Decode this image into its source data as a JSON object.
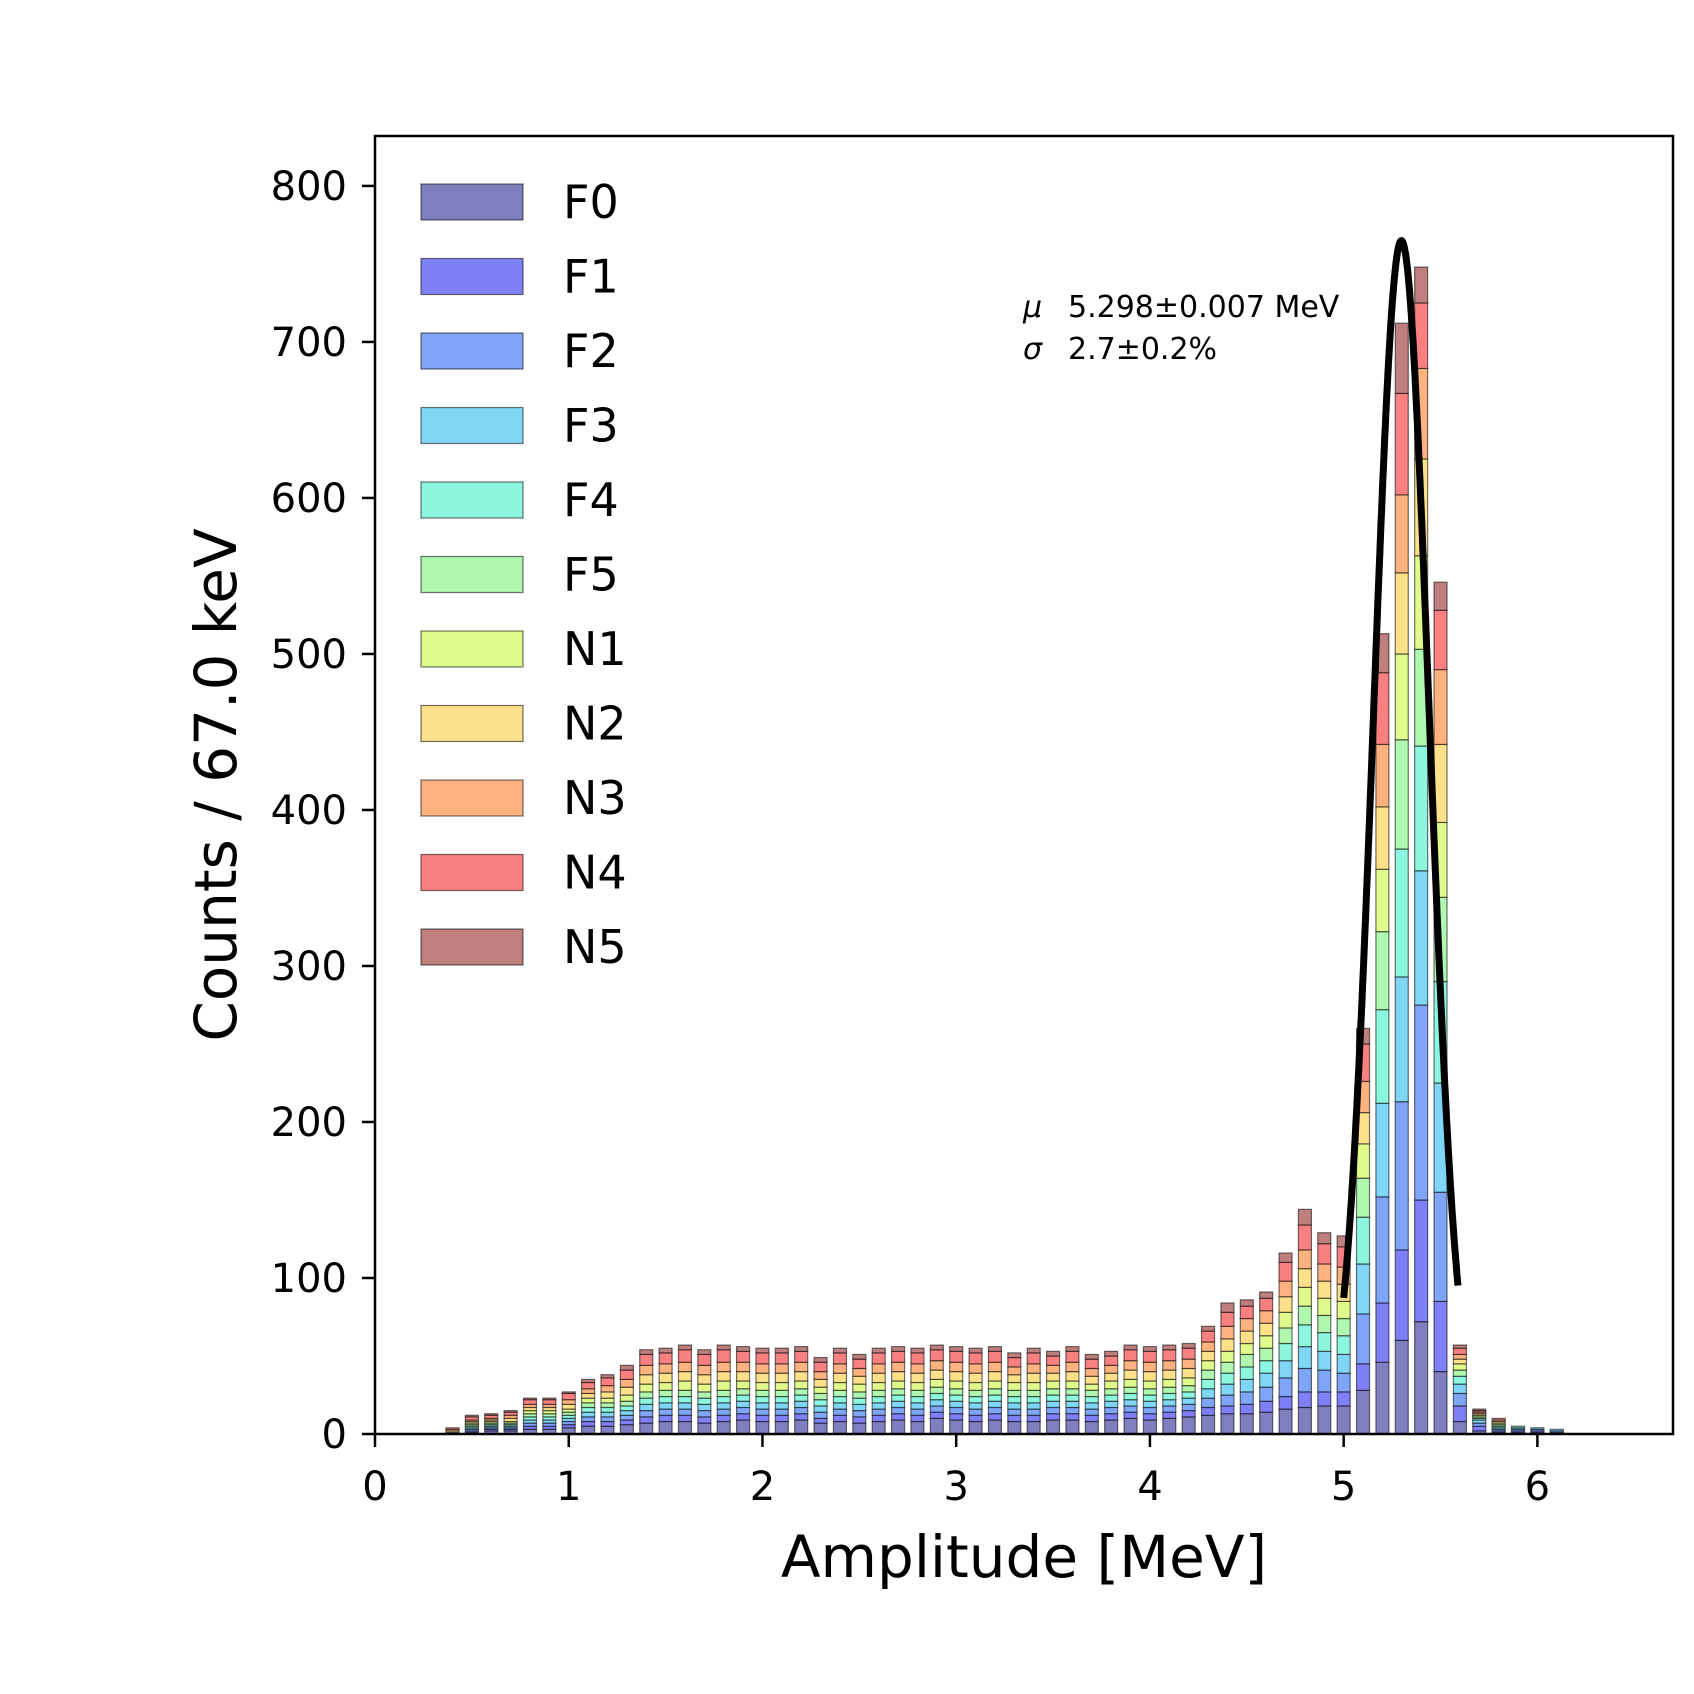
{
  "chart_data": {
    "type": "bar",
    "subtype": "stacked-step-histogram",
    "xlabel": "Amplitude [MeV]",
    "ylabel": "Counts / 67.0 keV",
    "xlim": [
      0,
      6.7
    ],
    "ylim": [
      0,
      832
    ],
    "xticks": [
      0,
      1,
      2,
      3,
      4,
      5,
      6
    ],
    "xtick_labels": [
      "0",
      "1",
      "2",
      "3",
      "4",
      "5",
      "6"
    ],
    "yticks": [
      0,
      100,
      200,
      300,
      400,
      500,
      600,
      700,
      800
    ],
    "ytick_labels": [
      "0",
      "100",
      "200",
      "300",
      "400",
      "500",
      "600",
      "700",
      "800"
    ],
    "grid": false,
    "legend_position": "top-left",
    "bin_width_mev": 0.067,
    "bin_centers": [
      0.3,
      0.4,
      0.5,
      0.6,
      0.7,
      0.8,
      0.9,
      1.0,
      1.1,
      1.2,
      1.3,
      1.4,
      1.5,
      1.6,
      1.7,
      1.8,
      1.9,
      2.0,
      2.1,
      2.2,
      2.3,
      2.4,
      2.5,
      2.6,
      2.7,
      2.8,
      2.9,
      3.0,
      3.1,
      3.2,
      3.3,
      3.4,
      3.5,
      3.6,
      3.7,
      3.8,
      3.9,
      4.0,
      4.1,
      4.2,
      4.3,
      4.4,
      4.5,
      4.6,
      4.7,
      4.8,
      4.9,
      5.0,
      5.1,
      5.2,
      5.3,
      5.4,
      5.5,
      5.6,
      5.7,
      5.8,
      5.9,
      6.0,
      6.1,
      6.2,
      6.3,
      6.4
    ],
    "series": [
      {
        "name": "F0",
        "color": "#7f7fbf",
        "values": [
          0,
          1,
          1,
          2,
          2,
          3,
          3,
          4,
          5,
          5,
          6,
          7,
          8,
          8,
          7,
          8,
          9,
          8,
          8,
          9,
          7,
          8,
          7,
          8,
          9,
          8,
          10,
          9,
          8,
          9,
          8,
          8,
          9,
          9,
          8,
          9,
          10,
          9,
          10,
          11,
          12,
          13,
          13,
          14,
          16,
          17,
          18,
          18,
          28,
          46,
          60,
          72,
          40,
          8,
          2,
          1,
          1,
          1,
          1,
          0,
          0,
          0
        ]
      },
      {
        "name": "F1",
        "color": "#7f7ff7",
        "values": [
          0,
          0,
          1,
          1,
          1,
          2,
          2,
          2,
          3,
          3,
          3,
          4,
          4,
          4,
          4,
          4,
          4,
          4,
          4,
          4,
          3,
          4,
          4,
          4,
          4,
          4,
          4,
          4,
          4,
          4,
          4,
          4,
          4,
          4,
          4,
          4,
          4,
          4,
          4,
          4,
          5,
          5,
          6,
          7,
          8,
          10,
          9,
          9,
          17,
          38,
          58,
          78,
          45,
          10,
          3,
          1,
          1,
          1,
          0,
          0,
          0,
          0
        ]
      },
      {
        "name": "F2",
        "color": "#7fa5f7",
        "values": [
          0,
          0,
          1,
          1,
          1,
          2,
          2,
          2,
          3,
          3,
          3,
          4,
          4,
          4,
          4,
          4,
          4,
          4,
          4,
          4,
          4,
          4,
          4,
          4,
          4,
          4,
          4,
          4,
          4,
          4,
          4,
          4,
          4,
          4,
          4,
          4,
          4,
          4,
          4,
          4,
          6,
          7,
          8,
          9,
          12,
          15,
          14,
          12,
          32,
          68,
          95,
          125,
          70,
          8,
          2,
          1,
          1,
          1,
          1,
          0,
          0,
          0
        ]
      },
      {
        "name": "F3",
        "color": "#7fd6f7",
        "values": [
          0,
          0,
          1,
          1,
          1,
          2,
          2,
          2,
          3,
          3,
          3,
          4,
          4,
          4,
          4,
          4,
          4,
          4,
          4,
          4,
          4,
          4,
          4,
          4,
          4,
          4,
          4,
          4,
          4,
          4,
          4,
          4,
          4,
          4,
          4,
          4,
          4,
          4,
          4,
          4,
          6,
          7,
          8,
          9,
          11,
          14,
          12,
          12,
          32,
          60,
          80,
          86,
          70,
          6,
          2,
          1,
          1,
          1,
          1,
          0,
          0,
          0
        ]
      },
      {
        "name": "F4",
        "color": "#8cf7de",
        "values": [
          0,
          0,
          1,
          1,
          1,
          2,
          2,
          2,
          3,
          3,
          3,
          4,
          4,
          4,
          4,
          4,
          4,
          4,
          4,
          4,
          4,
          4,
          4,
          4,
          4,
          4,
          4,
          4,
          4,
          4,
          4,
          4,
          4,
          4,
          4,
          4,
          4,
          4,
          4,
          4,
          6,
          7,
          8,
          8,
          11,
          14,
          12,
          12,
          30,
          60,
          82,
          80,
          65,
          5,
          1,
          1,
          1,
          0,
          0,
          0,
          0,
          0
        ]
      },
      {
        "name": "F5",
        "color": "#b0f7b0",
        "values": [
          0,
          0,
          1,
          1,
          1,
          2,
          2,
          2,
          3,
          3,
          3,
          4,
          4,
          4,
          4,
          4,
          4,
          4,
          4,
          4,
          4,
          4,
          4,
          4,
          4,
          4,
          4,
          4,
          4,
          4,
          4,
          4,
          4,
          4,
          4,
          4,
          4,
          4,
          4,
          4,
          6,
          7,
          8,
          8,
          10,
          12,
          11,
          11,
          25,
          50,
          70,
          62,
          54,
          4,
          1,
          1,
          0,
          0,
          0,
          0,
          0,
          0
        ]
      },
      {
        "name": "N1",
        "color": "#e0fa8c",
        "values": [
          0,
          0,
          1,
          1,
          1,
          2,
          2,
          2,
          3,
          3,
          4,
          5,
          5,
          6,
          5,
          6,
          5,
          5,
          5,
          5,
          4,
          5,
          5,
          5,
          5,
          5,
          5,
          5,
          5,
          5,
          5,
          5,
          5,
          5,
          4,
          5,
          5,
          5,
          5,
          5,
          6,
          7,
          7,
          8,
          10,
          12,
          11,
          11,
          22,
          40,
          55,
          60,
          48,
          4,
          1,
          1,
          0,
          0,
          0,
          0,
          0,
          0
        ]
      },
      {
        "name": "N2",
        "color": "#fde08a",
        "values": [
          0,
          1,
          1,
          1,
          2,
          2,
          2,
          3,
          3,
          4,
          5,
          6,
          6,
          6,
          6,
          6,
          6,
          6,
          6,
          6,
          5,
          6,
          5,
          6,
          6,
          6,
          6,
          6,
          6,
          6,
          5,
          6,
          5,
          6,
          5,
          5,
          6,
          6,
          6,
          6,
          6,
          8,
          8,
          8,
          10,
          12,
          11,
          11,
          20,
          40,
          52,
          62,
          50,
          3,
          1,
          1,
          0,
          0,
          0,
          0,
          0,
          0
        ]
      },
      {
        "name": "N3",
        "color": "#fdb27f",
        "values": [
          0,
          1,
          1,
          1,
          2,
          2,
          2,
          3,
          3,
          4,
          5,
          6,
          6,
          6,
          6,
          6,
          6,
          6,
          6,
          6,
          5,
          6,
          5,
          6,
          6,
          6,
          6,
          6,
          6,
          6,
          5,
          6,
          5,
          6,
          5,
          5,
          6,
          6,
          6,
          6,
          6,
          8,
          8,
          8,
          10,
          12,
          11,
          11,
          20,
          40,
          50,
          58,
          48,
          3,
          1,
          1,
          0,
          0,
          0,
          0,
          0,
          0
        ]
      },
      {
        "name": "N4",
        "color": "#f88080",
        "values": [
          0,
          1,
          2,
          2,
          2,
          3,
          3,
          4,
          4,
          5,
          6,
          7,
          7,
          8,
          7,
          8,
          7,
          7,
          7,
          7,
          6,
          7,
          6,
          7,
          7,
          7,
          7,
          7,
          7,
          7,
          6,
          7,
          6,
          7,
          6,
          6,
          7,
          7,
          7,
          7,
          7,
          9,
          8,
          8,
          12,
          16,
          13,
          13,
          24,
          46,
          65,
          42,
          38,
          4,
          1,
          1,
          0,
          0,
          0,
          0,
          0,
          0
        ]
      },
      {
        "name": "N5",
        "color": "#bf7f7f",
        "values": [
          0,
          0,
          1,
          1,
          1,
          1,
          1,
          1,
          2,
          2,
          3,
          3,
          3,
          3,
          3,
          3,
          3,
          3,
          3,
          3,
          3,
          3,
          3,
          3,
          3,
          3,
          3,
          3,
          3,
          3,
          3,
          3,
          3,
          3,
          3,
          3,
          3,
          3,
          3,
          3,
          3,
          6,
          4,
          4,
          6,
          10,
          7,
          7,
          10,
          25,
          45,
          23,
          18,
          2,
          1,
          0,
          0,
          0,
          0,
          0,
          0,
          0
        ]
      }
    ],
    "fit": {
      "type": "gaussian",
      "mu_mev": 5.298,
      "sigma_mev": 0.143,
      "amplitude": 765,
      "x_range": [
        5.0,
        5.59
      ]
    },
    "annotations": [
      {
        "symbol": "μ",
        "text": "5.298±0.007 MeV"
      },
      {
        "symbol": "σ",
        "text": "2.7±0.2%"
      }
    ]
  }
}
